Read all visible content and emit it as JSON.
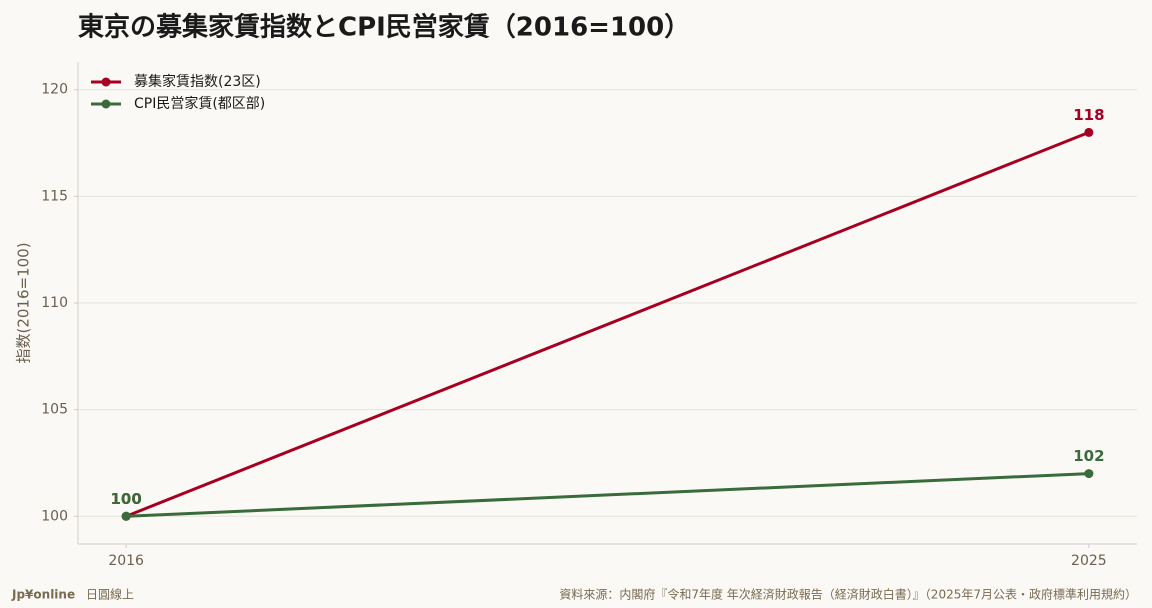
{
  "chart_data": {
    "type": "line",
    "title": "東京の募集家賃指数とCPI民営家賃（2016=100）",
    "y_label": "指数(2016=100)",
    "x": [
      2016,
      2025
    ],
    "series": [
      {
        "name": "募集家賃指数(23区)",
        "color": "#a50021",
        "values": [
          100,
          118
        ]
      },
      {
        "name": "CPI民営家賃(都区部)",
        "color": "#3a6b3a",
        "values": [
          100,
          102
        ]
      }
    ],
    "xlim": [
      2015.55,
      2025.45
    ],
    "xticks": [
      2016,
      2025
    ],
    "ylim": [
      98.7,
      121.3
    ],
    "yticks": [
      100,
      105,
      110,
      115,
      120
    ],
    "grid": true,
    "legend": "upper-left",
    "brand": "Jp¥online",
    "brand_sub": "日圓線上",
    "source": "資料來源：内閣府『令和7年度 年次経済財政報告（経済財政白書）』（2025年7月公表・政府標準利用規約）"
  }
}
